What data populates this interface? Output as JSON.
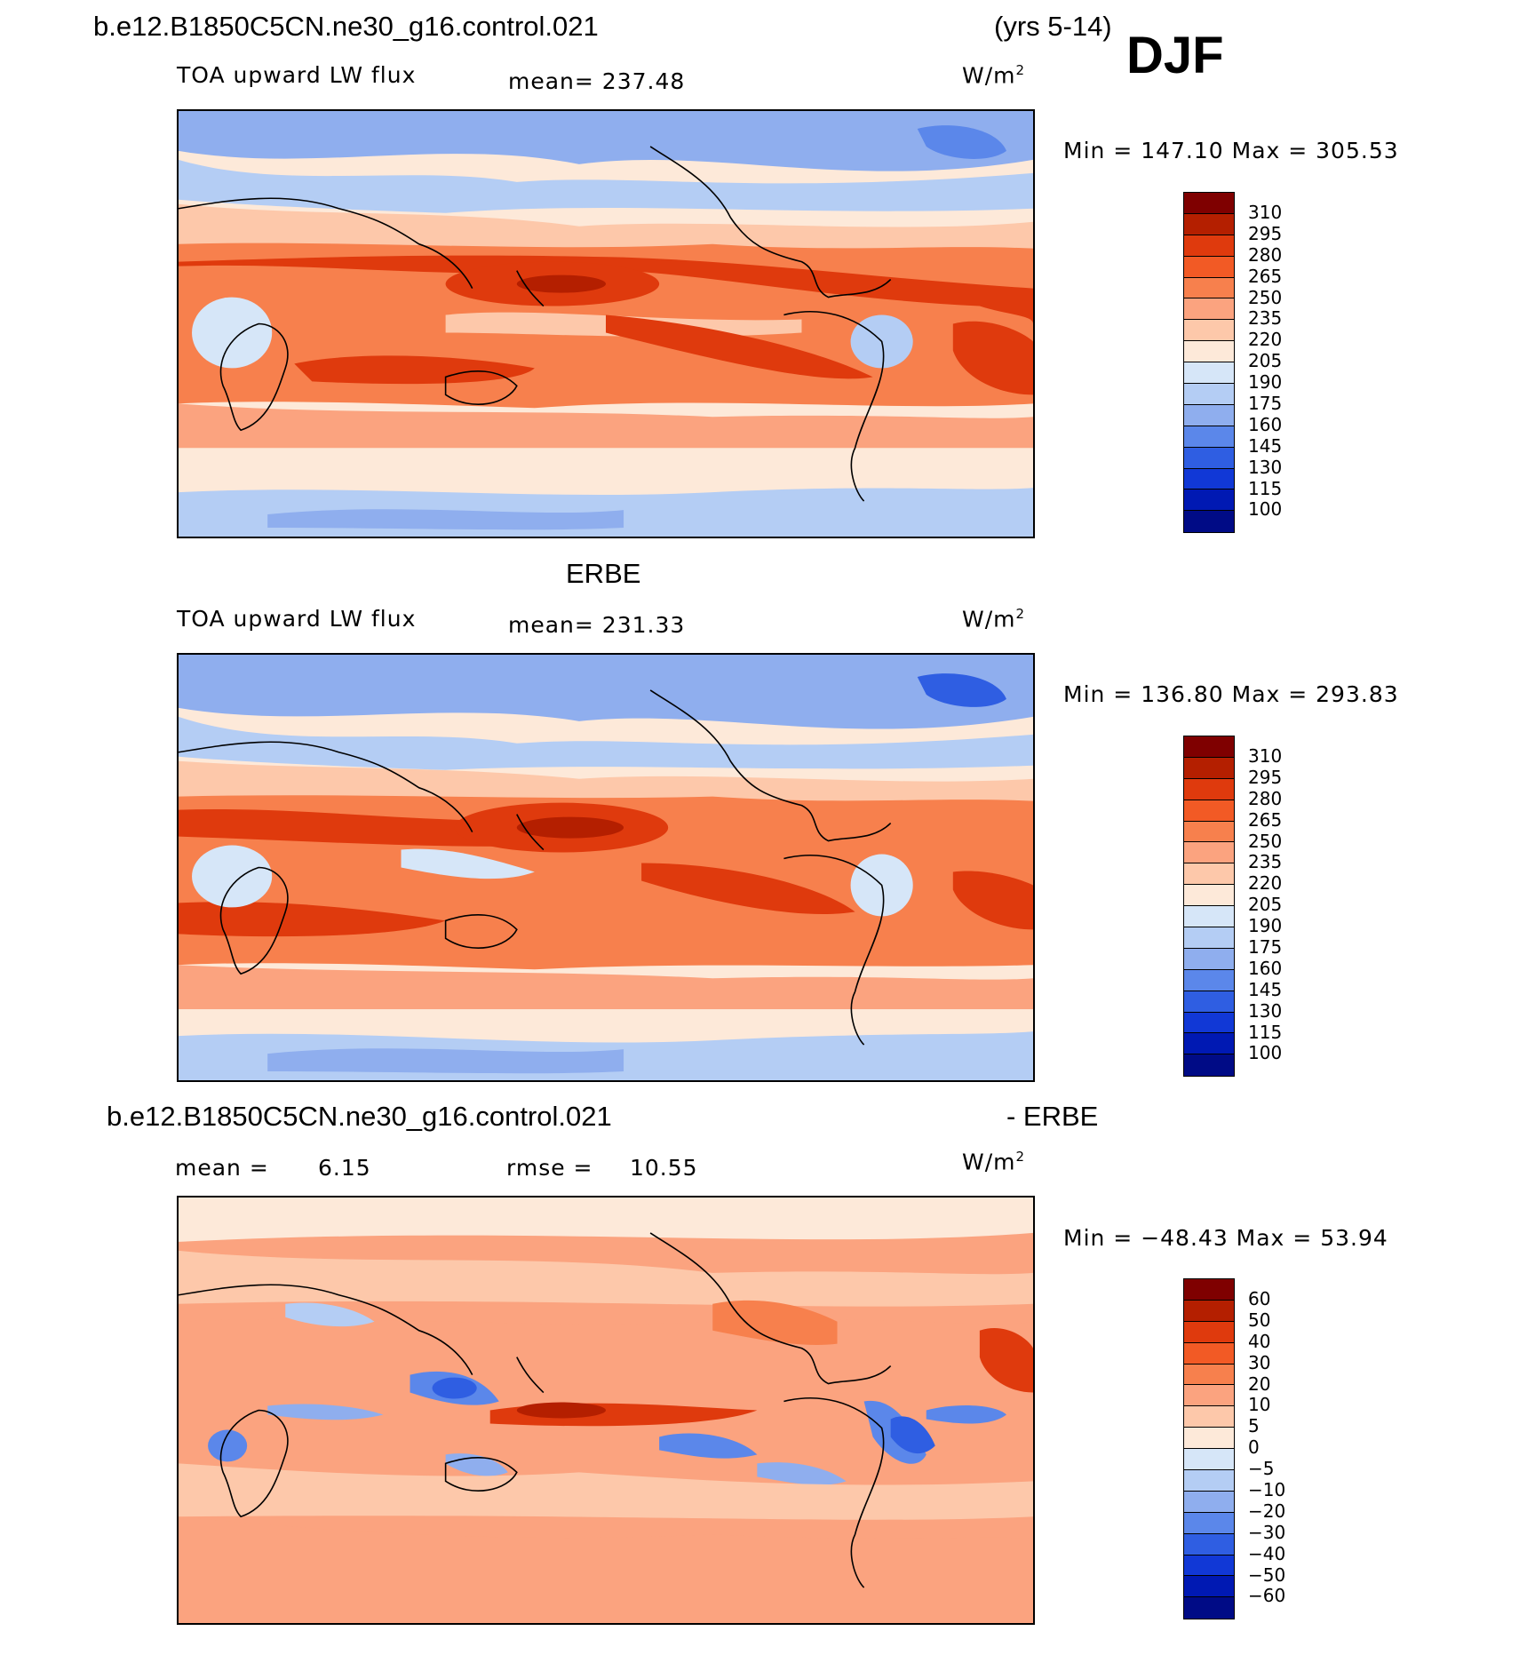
{
  "header": {
    "case_name": "b.e12.B1850C5CN.ne30_g16.control.021",
    "years": "(yrs 5-14)",
    "season": "DJF"
  },
  "panels": [
    {
      "title": "",
      "variable": "TOA upward LW flux",
      "stat": "mean= 237.48",
      "units": "W/m",
      "units_sup": "2",
      "minmax": "Min = 147.10 Max = 305.53",
      "colorbar": {
        "colors": [
          "#7f0000",
          "#b41f00",
          "#df3a0d",
          "#f25a25",
          "#f7804d",
          "#fba37f",
          "#fdc8aa",
          "#fde9d9",
          "#d6e6f8",
          "#b4cdf4",
          "#8faeee",
          "#5b87ea",
          "#2f5ee2",
          "#1138d6",
          "#0019b3",
          "#000b86"
        ],
        "labels": [
          "310",
          "295",
          "280",
          "265",
          "250",
          "235",
          "220",
          "205",
          "190",
          "175",
          "160",
          "145",
          "130",
          "115",
          "100"
        ]
      }
    },
    {
      "title": "ERBE",
      "variable": "TOA upward LW flux",
      "stat": "mean= 231.33",
      "units": "W/m",
      "units_sup": "2",
      "minmax": "Min = 136.80 Max = 293.83",
      "colorbar": {
        "colors": [
          "#7f0000",
          "#b41f00",
          "#df3a0d",
          "#f25a25",
          "#f7804d",
          "#fba37f",
          "#fdc8aa",
          "#fde9d9",
          "#d6e6f8",
          "#b4cdf4",
          "#8faeee",
          "#5b87ea",
          "#2f5ee2",
          "#1138d6",
          "#0019b3",
          "#000b86"
        ],
        "labels": [
          "310",
          "295",
          "280",
          "265",
          "250",
          "235",
          "220",
          "205",
          "190",
          "175",
          "160",
          "145",
          "130",
          "115",
          "100"
        ]
      }
    },
    {
      "title": "b.e12.B1850C5CN.ne30_g16.control.021",
      "title_suffix": "- ERBE",
      "mean_label": "mean =",
      "mean_value": "6.15",
      "rmse_label": "rmse =",
      "rmse_value": "10.55",
      "units": "W/m",
      "units_sup": "2",
      "minmax": "Min = −48.43 Max =  53.94",
      "colorbar": {
        "colors": [
          "#7f0000",
          "#b41f00",
          "#df3a0d",
          "#f25a25",
          "#f7804d",
          "#fba37f",
          "#fdc8aa",
          "#fde9d9",
          "#d6e6f8",
          "#b4cdf4",
          "#8faeee",
          "#5b87ea",
          "#2f5ee2",
          "#1138d6",
          "#0019b3",
          "#000b86"
        ],
        "labels": [
          "60",
          "50",
          "40",
          "30",
          "20",
          "10",
          "5",
          "0",
          "−5",
          "−10",
          "−20",
          "−30",
          "−40",
          "−50",
          "−60"
        ]
      }
    }
  ]
}
